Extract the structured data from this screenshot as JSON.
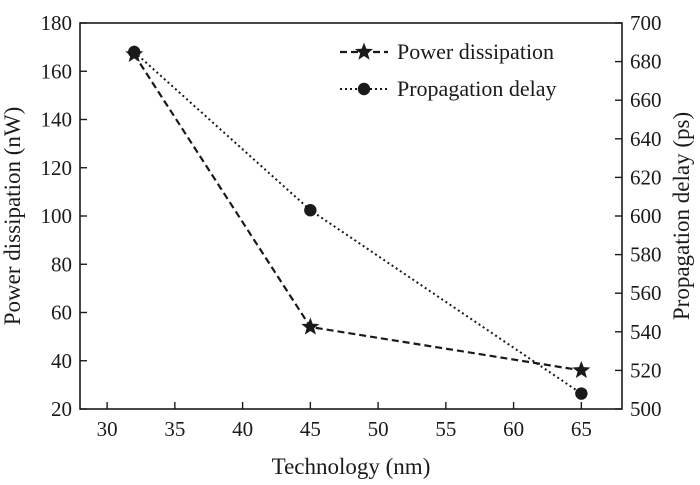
{
  "chart_data": {
    "type": "line",
    "title": "",
    "xlabel": "Technology (nm)",
    "ylabel_left": "Power dissipation (nW)",
    "ylabel_right": "Propagation delay (ps)",
    "xlim": [
      28,
      68
    ],
    "ylim_left": [
      20,
      180
    ],
    "ylim_right": [
      500,
      700
    ],
    "xticks": [
      30,
      35,
      40,
      45,
      50,
      55,
      60,
      65
    ],
    "yticks_left": [
      20,
      40,
      60,
      80,
      100,
      120,
      140,
      160,
      180
    ],
    "yticks_right": [
      500,
      520,
      540,
      560,
      580,
      600,
      620,
      640,
      660,
      680,
      700
    ],
    "legend_position": "top-right",
    "series": [
      {
        "name": "Power dissipation",
        "axis": "left",
        "marker": "star",
        "linestyle": "dashed",
        "x": [
          32,
          45,
          65
        ],
        "values": [
          167,
          54,
          36
        ]
      },
      {
        "name": "Propagation delay",
        "axis": "right",
        "marker": "circle",
        "linestyle": "dotted",
        "x": [
          32,
          45,
          65
        ],
        "values": [
          685,
          603,
          508
        ]
      }
    ]
  }
}
